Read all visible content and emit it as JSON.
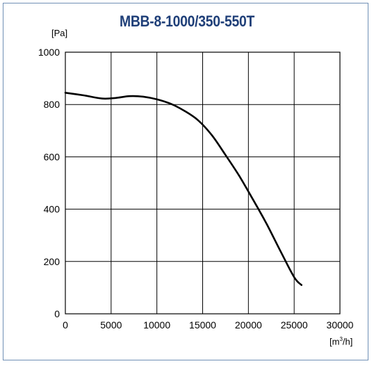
{
  "chart_data": {
    "type": "line",
    "title": "MBB-8-1000/350-550T",
    "ylabel": "[Pa]",
    "xlabel_base": "[m",
    "xlabel_sup": "3",
    "xlabel_tail": "/h]",
    "xlim": [
      0,
      30000
    ],
    "ylim": [
      0,
      1000
    ],
    "xticks": [
      0,
      5000,
      10000,
      15000,
      20000,
      25000,
      30000
    ],
    "yticks": [
      0,
      200,
      400,
      600,
      800,
      1000
    ],
    "grid": true,
    "series": [
      {
        "x": [
          0,
          2000,
          4000,
          5500,
          7000,
          8500,
          10000,
          11500,
          13000,
          14500,
          16000,
          17500,
          19000,
          20500,
          22000,
          23500,
          25000,
          25800
        ],
        "y": [
          845,
          835,
          823,
          825,
          832,
          830,
          820,
          803,
          776,
          740,
          683,
          607,
          527,
          437,
          343,
          240,
          140,
          110
        ]
      }
    ]
  },
  "colors": {
    "title": "#1f3f78",
    "frame": "#6f8fb5",
    "curve": "#000000",
    "grid": "#000000"
  }
}
